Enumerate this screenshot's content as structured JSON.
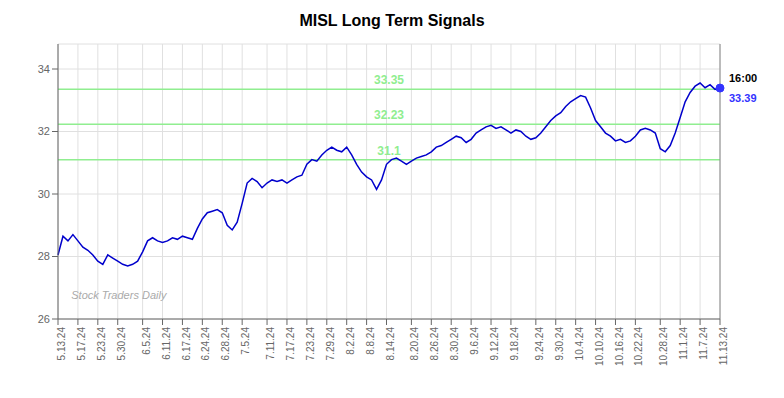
{
  "chart_data": {
    "type": "line",
    "title": "MISL Long Term Signals",
    "categories": [
      "5.13.24",
      null,
      null,
      null,
      "5.17.24",
      null,
      null,
      null,
      "5.23.24",
      null,
      null,
      null,
      "5.30.24",
      null,
      null,
      null,
      null,
      "6.5.24",
      null,
      null,
      null,
      "6.11.24",
      null,
      null,
      null,
      "6.17.24",
      null,
      null,
      null,
      "6.24.24",
      null,
      null,
      null,
      "6.28.24",
      null,
      null,
      null,
      "7.5.24",
      null,
      null,
      null,
      null,
      "7.11.24",
      null,
      null,
      null,
      "7.17.24",
      null,
      null,
      null,
      "7.23.24",
      null,
      null,
      null,
      "7.29.24",
      null,
      null,
      null,
      "8.2.24",
      null,
      null,
      null,
      "8.8.24",
      null,
      null,
      null,
      "8.14.24",
      null,
      null,
      null,
      null,
      "8.20.24",
      null,
      null,
      null,
      "8.26.24",
      null,
      null,
      null,
      "8.30.24",
      null,
      null,
      null,
      "9.6.24",
      null,
      null,
      null,
      "9.12.24",
      null,
      null,
      null,
      "9.18.24",
      null,
      null,
      null,
      null,
      "9.24.24",
      null,
      null,
      null,
      "9.30.24",
      null,
      null,
      null,
      "10.4.24",
      null,
      null,
      null,
      "10.10.24",
      null,
      null,
      null,
      "10.16.24",
      null,
      null,
      null,
      "10.22.24",
      null,
      null,
      null,
      null,
      "10.28.24",
      null,
      null,
      null,
      "11.1.24",
      null,
      null,
      null,
      "11.7.24",
      null,
      null,
      null,
      "11.13.24"
    ],
    "values": [
      28.05,
      28.65,
      28.5,
      28.7,
      28.5,
      28.3,
      28.2,
      28.05,
      27.85,
      27.75,
      28.05,
      27.95,
      27.85,
      27.75,
      27.7,
      27.75,
      27.85,
      28.15,
      28.5,
      28.6,
      28.5,
      28.45,
      28.5,
      28.6,
      28.55,
      28.65,
      28.6,
      28.55,
      28.9,
      29.2,
      29.4,
      29.45,
      29.5,
      29.4,
      29.0,
      28.85,
      29.1,
      29.7,
      30.35,
      30.5,
      30.4,
      30.2,
      30.35,
      30.45,
      30.4,
      30.45,
      30.35,
      30.45,
      30.55,
      30.6,
      30.95,
      31.1,
      31.05,
      31.25,
      31.4,
      31.5,
      31.4,
      31.35,
      31.5,
      31.25,
      30.95,
      30.7,
      30.55,
      30.45,
      30.15,
      30.45,
      30.95,
      31.1,
      31.15,
      31.05,
      30.95,
      31.05,
      31.15,
      31.2,
      31.25,
      31.35,
      31.5,
      31.55,
      31.65,
      31.75,
      31.85,
      31.8,
      31.65,
      31.75,
      31.95,
      32.05,
      32.15,
      32.2,
      32.1,
      32.15,
      32.05,
      31.95,
      32.05,
      32.0,
      31.85,
      31.75,
      31.8,
      31.95,
      32.15,
      32.35,
      32.5,
      32.6,
      32.8,
      32.95,
      33.05,
      33.15,
      33.1,
      32.75,
      32.35,
      32.15,
      31.95,
      31.85,
      31.7,
      31.75,
      31.65,
      31.7,
      31.85,
      32.05,
      32.1,
      32.05,
      31.95,
      31.45,
      31.35,
      31.55,
      31.95,
      32.45,
      32.95,
      33.25,
      33.45,
      33.55,
      33.4,
      33.5,
      33.35,
      33.39
    ],
    "color": "#0000cc",
    "ylim": [
      26,
      34.8
    ],
    "yticks": [
      26,
      28,
      30,
      32,
      34
    ],
    "grid": true,
    "hlines": [
      {
        "value": 33.35,
        "label": "33.35",
        "color": "#90ee90"
      },
      {
        "value": 32.23,
        "label": "32.23",
        "color": "#90ee90"
      },
      {
        "value": 31.1,
        "label": "31.1",
        "color": "#90ee90"
      }
    ],
    "last_point": {
      "label": "16:00",
      "value": 33.39,
      "color": "#3333ff"
    },
    "watermark": "Stock Traders Daily"
  }
}
